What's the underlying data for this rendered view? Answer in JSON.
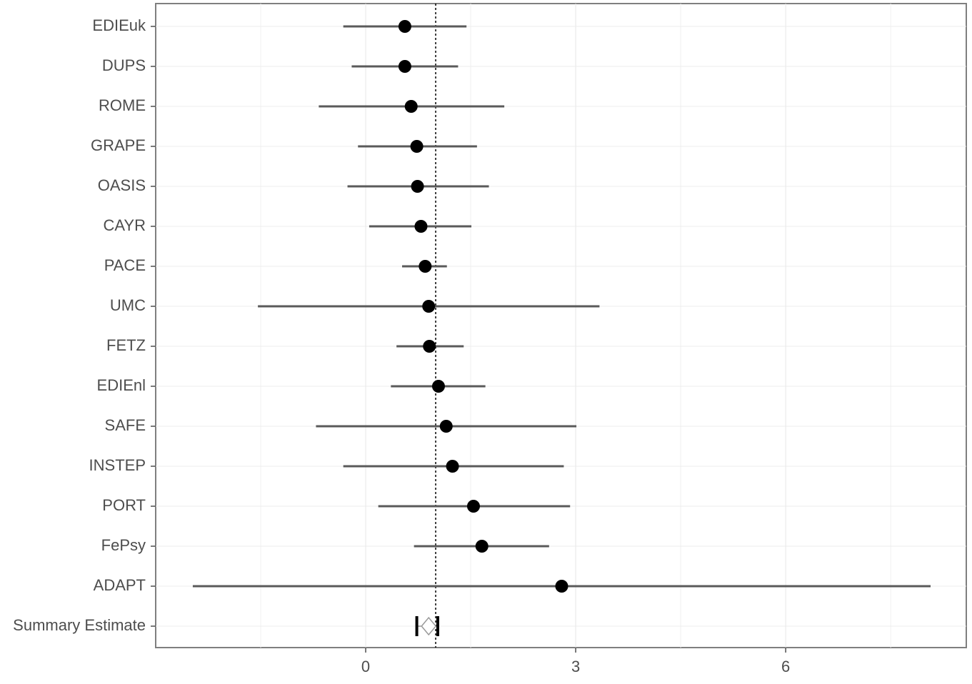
{
  "chart_data": {
    "type": "forest",
    "categories": [
      "EDIEuk",
      "DUPS",
      "ROME",
      "GRAPE",
      "OASIS",
      "CAYR",
      "PACE",
      "UMC",
      "FETZ",
      "EDIEnl",
      "SAFE",
      "INSTEP",
      "PORT",
      "FePsy",
      "ADAPT"
    ],
    "estimates": [
      0.56,
      0.56,
      0.65,
      0.73,
      0.74,
      0.79,
      0.85,
      0.9,
      0.91,
      1.04,
      1.15,
      1.24,
      1.54,
      1.66,
      2.8
    ],
    "lower": [
      -0.32,
      -0.2,
      -0.67,
      -0.11,
      -0.26,
      0.05,
      0.52,
      -1.54,
      0.44,
      0.36,
      -0.71,
      -0.32,
      0.18,
      0.69,
      -2.47
    ],
    "upper": [
      1.44,
      1.32,
      1.98,
      1.59,
      1.76,
      1.51,
      1.16,
      3.34,
      1.4,
      1.71,
      3.01,
      2.83,
      2.92,
      2.62,
      8.07
    ],
    "summary": {
      "label": "Summary Estimate",
      "estimate": 0.9,
      "lower": 0.73,
      "upper": 1.03
    },
    "reference_line": 1,
    "xlim": [
      -3,
      8.58
    ],
    "xticks": [
      0,
      3,
      6
    ],
    "minor_xticks": [
      -1.5,
      1.5,
      4.5,
      7.5
    ],
    "grid": true,
    "color": "#000000",
    "interval_color": "#5a5a5a"
  }
}
